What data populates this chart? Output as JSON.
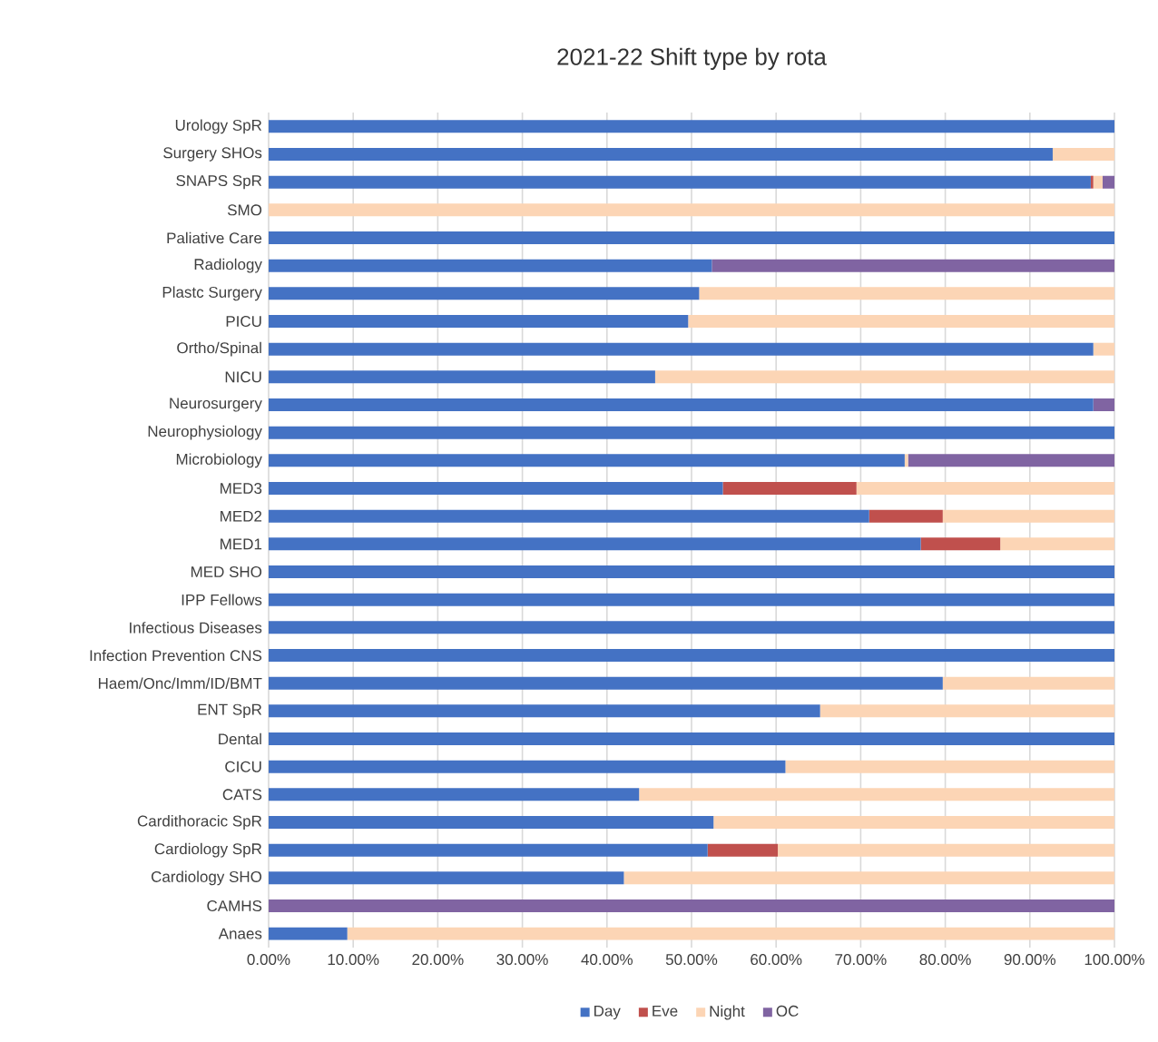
{
  "chart_data": {
    "type": "bar",
    "orientation": "horizontal",
    "stacked": true,
    "title": "2021-22 Shift type by rota",
    "categories": [
      "Urology SpR",
      "Surgery SHOs",
      "SNAPS SpR",
      "SMO",
      "Paliative Care",
      "Radiology",
      "Plastc Surgery",
      "PICU",
      "Ortho/Spinal",
      "NICU",
      "Neurosurgery",
      "Neurophysiology",
      "Microbiology",
      "MED3",
      "MED2",
      "MED1",
      "MED SHO",
      "IPP Fellows",
      "Infectious Diseases",
      "Infection Prevention CNS",
      "Haem/Onc/Imm/ID/BMT",
      "ENT SpR",
      "Dental",
      "CICU",
      "CATS",
      "Cardithoracic SpR",
      "Cardiology SpR",
      "Cardiology SHO",
      "CAMHS",
      "Anaes"
    ],
    "series": [
      {
        "name": "Day",
        "color": "#4472c4",
        "values": [
          100,
          92.7,
          97.2,
          0,
          100,
          52.4,
          50.9,
          49.6,
          97.5,
          45.7,
          97.5,
          100,
          75.2,
          53.7,
          71.0,
          77.1,
          100,
          100,
          100,
          100,
          79.7,
          65.2,
          100,
          61.1,
          43.8,
          52.6,
          51.9,
          42.0,
          0,
          9.3
        ]
      },
      {
        "name": "Eve",
        "color": "#c0504d",
        "values": [
          0,
          0,
          0.3,
          0,
          0,
          0,
          0,
          0,
          0,
          0,
          0,
          0,
          0,
          15.8,
          8.7,
          9.4,
          0,
          0,
          0,
          0,
          0,
          0,
          0,
          0,
          0,
          0,
          8.3,
          0,
          0,
          0
        ]
      },
      {
        "name": "Night",
        "color": "#fcd5b5",
        "values": [
          0,
          7.3,
          1.1,
          100,
          0,
          0,
          49.1,
          50.4,
          2.5,
          54.3,
          0,
          0,
          0.4,
          30.5,
          20.3,
          13.5,
          0,
          0,
          0,
          0,
          20.3,
          34.8,
          0,
          38.9,
          56.2,
          47.4,
          39.8,
          58.0,
          0,
          90.7
        ]
      },
      {
        "name": "OC",
        "color": "#8064a2",
        "values": [
          0,
          0,
          1.4,
          0,
          0,
          47.6,
          0,
          0,
          0,
          0,
          2.5,
          0,
          24.4,
          0,
          0,
          0,
          0,
          0,
          0,
          0,
          0,
          0,
          0,
          0,
          0,
          0,
          0,
          0,
          100,
          0
        ]
      }
    ],
    "xlim": [
      0,
      100
    ],
    "xticks": [
      {
        "value": 0,
        "label": "0.00%"
      },
      {
        "value": 10,
        "label": "10.00%"
      },
      {
        "value": 20,
        "label": "20.00%"
      },
      {
        "value": 30,
        "label": "30.00%"
      },
      {
        "value": 40,
        "label": "40.00%"
      },
      {
        "value": 50,
        "label": "50.00%"
      },
      {
        "value": 60,
        "label": "60.00%"
      },
      {
        "value": 70,
        "label": "70.00%"
      },
      {
        "value": 80,
        "label": "80.00%"
      },
      {
        "value": 90,
        "label": "90.00%"
      },
      {
        "value": 100,
        "label": "100.00%"
      }
    ],
    "grid": "x",
    "legend": "bottom"
  }
}
